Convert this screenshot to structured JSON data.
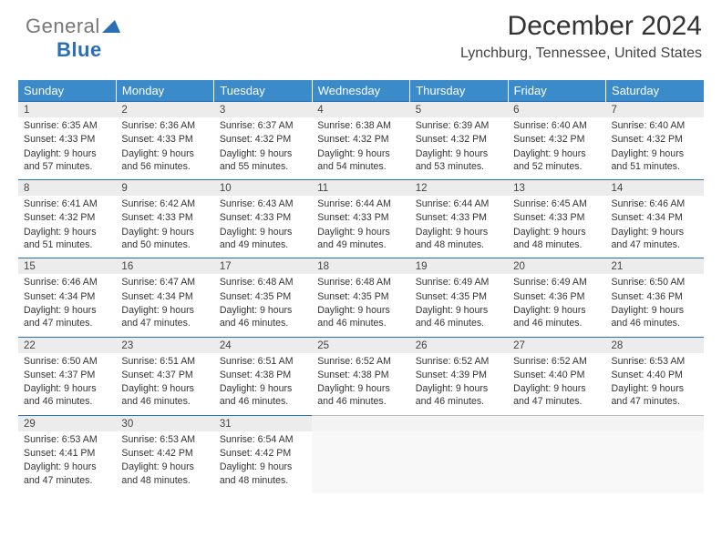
{
  "brand": {
    "word1": "General",
    "word2": "Blue",
    "tri_color": "#2a6fb5"
  },
  "header": {
    "month_title": "December 2024",
    "location": "Lynchburg, Tennessee, United States"
  },
  "theme": {
    "header_bg": "#3b8bca",
    "header_fg": "#ffffff",
    "daynum_bg": "#ececec",
    "daynum_border_top": "#2a6fb5",
    "text_color": "#333333",
    "font_family": "Arial, Helvetica, sans-serif"
  },
  "weekdays": [
    "Sunday",
    "Monday",
    "Tuesday",
    "Wednesday",
    "Thursday",
    "Friday",
    "Saturday"
  ],
  "labels": {
    "sunrise": "Sunrise:",
    "sunset": "Sunset:",
    "daylight_prefix": "Daylight:",
    "daylight_mid": "hours and",
    "daylight_suffix": "minutes."
  },
  "weeks": [
    [
      {
        "day": "1",
        "sunrise": "6:35 AM",
        "sunset": "4:33 PM",
        "dh": "9",
        "dm": "57"
      },
      {
        "day": "2",
        "sunrise": "6:36 AM",
        "sunset": "4:33 PM",
        "dh": "9",
        "dm": "56"
      },
      {
        "day": "3",
        "sunrise": "6:37 AM",
        "sunset": "4:32 PM",
        "dh": "9",
        "dm": "55"
      },
      {
        "day": "4",
        "sunrise": "6:38 AM",
        "sunset": "4:32 PM",
        "dh": "9",
        "dm": "54"
      },
      {
        "day": "5",
        "sunrise": "6:39 AM",
        "sunset": "4:32 PM",
        "dh": "9",
        "dm": "53"
      },
      {
        "day": "6",
        "sunrise": "6:40 AM",
        "sunset": "4:32 PM",
        "dh": "9",
        "dm": "52"
      },
      {
        "day": "7",
        "sunrise": "6:40 AM",
        "sunset": "4:32 PM",
        "dh": "9",
        "dm": "51"
      }
    ],
    [
      {
        "day": "8",
        "sunrise": "6:41 AM",
        "sunset": "4:32 PM",
        "dh": "9",
        "dm": "51"
      },
      {
        "day": "9",
        "sunrise": "6:42 AM",
        "sunset": "4:33 PM",
        "dh": "9",
        "dm": "50"
      },
      {
        "day": "10",
        "sunrise": "6:43 AM",
        "sunset": "4:33 PM",
        "dh": "9",
        "dm": "49"
      },
      {
        "day": "11",
        "sunrise": "6:44 AM",
        "sunset": "4:33 PM",
        "dh": "9",
        "dm": "49"
      },
      {
        "day": "12",
        "sunrise": "6:44 AM",
        "sunset": "4:33 PM",
        "dh": "9",
        "dm": "48"
      },
      {
        "day": "13",
        "sunrise": "6:45 AM",
        "sunset": "4:33 PM",
        "dh": "9",
        "dm": "48"
      },
      {
        "day": "14",
        "sunrise": "6:46 AM",
        "sunset": "4:34 PM",
        "dh": "9",
        "dm": "47"
      }
    ],
    [
      {
        "day": "15",
        "sunrise": "6:46 AM",
        "sunset": "4:34 PM",
        "dh": "9",
        "dm": "47"
      },
      {
        "day": "16",
        "sunrise": "6:47 AM",
        "sunset": "4:34 PM",
        "dh": "9",
        "dm": "47"
      },
      {
        "day": "17",
        "sunrise": "6:48 AM",
        "sunset": "4:35 PM",
        "dh": "9",
        "dm": "46"
      },
      {
        "day": "18",
        "sunrise": "6:48 AM",
        "sunset": "4:35 PM",
        "dh": "9",
        "dm": "46"
      },
      {
        "day": "19",
        "sunrise": "6:49 AM",
        "sunset": "4:35 PM",
        "dh": "9",
        "dm": "46"
      },
      {
        "day": "20",
        "sunrise": "6:49 AM",
        "sunset": "4:36 PM",
        "dh": "9",
        "dm": "46"
      },
      {
        "day": "21",
        "sunrise": "6:50 AM",
        "sunset": "4:36 PM",
        "dh": "9",
        "dm": "46"
      }
    ],
    [
      {
        "day": "22",
        "sunrise": "6:50 AM",
        "sunset": "4:37 PM",
        "dh": "9",
        "dm": "46"
      },
      {
        "day": "23",
        "sunrise": "6:51 AM",
        "sunset": "4:37 PM",
        "dh": "9",
        "dm": "46"
      },
      {
        "day": "24",
        "sunrise": "6:51 AM",
        "sunset": "4:38 PM",
        "dh": "9",
        "dm": "46"
      },
      {
        "day": "25",
        "sunrise": "6:52 AM",
        "sunset": "4:38 PM",
        "dh": "9",
        "dm": "46"
      },
      {
        "day": "26",
        "sunrise": "6:52 AM",
        "sunset": "4:39 PM",
        "dh": "9",
        "dm": "46"
      },
      {
        "day": "27",
        "sunrise": "6:52 AM",
        "sunset": "4:40 PM",
        "dh": "9",
        "dm": "47"
      },
      {
        "day": "28",
        "sunrise": "6:53 AM",
        "sunset": "4:40 PM",
        "dh": "9",
        "dm": "47"
      }
    ],
    [
      {
        "day": "29",
        "sunrise": "6:53 AM",
        "sunset": "4:41 PM",
        "dh": "9",
        "dm": "47"
      },
      {
        "day": "30",
        "sunrise": "6:53 AM",
        "sunset": "4:42 PM",
        "dh": "9",
        "dm": "48"
      },
      {
        "day": "31",
        "sunrise": "6:54 AM",
        "sunset": "4:42 PM",
        "dh": "9",
        "dm": "48"
      },
      null,
      null,
      null,
      null
    ]
  ]
}
